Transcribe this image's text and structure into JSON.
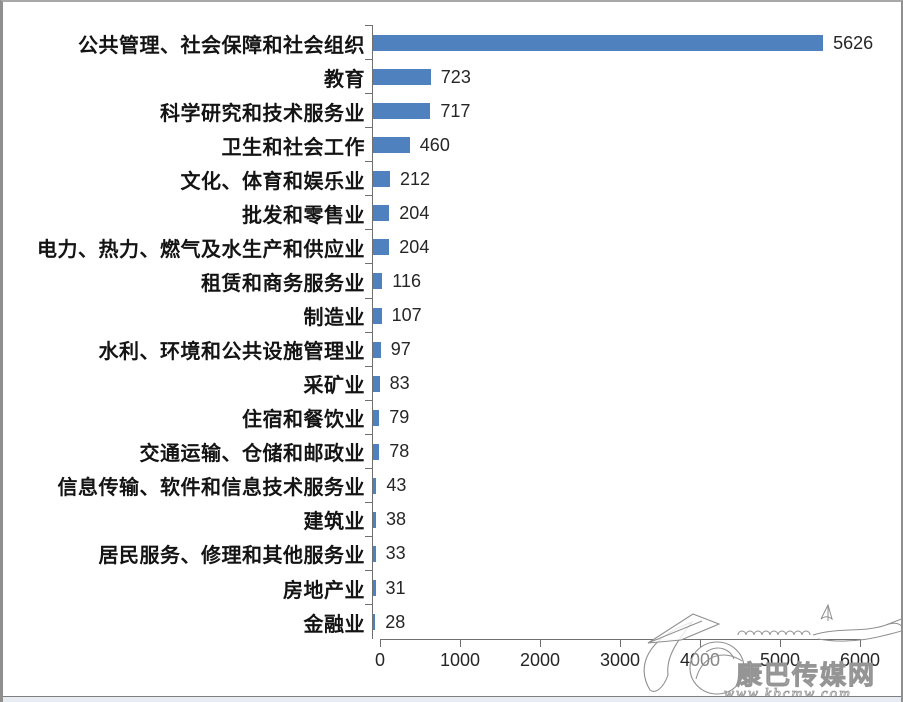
{
  "chart_data": {
    "type": "bar",
    "orientation": "horizontal",
    "title": "",
    "categories": [
      "公共管理、社会保障和社会组织",
      "教育",
      "科学研究和技术服务业",
      "卫生和社会工作",
      "文化、体育和娱乐业",
      "批发和零售业",
      "电力、热力、燃气及水生产和供应业",
      "租赁和商务服务业",
      "制造业",
      "水利、环境和公共设施管理业",
      "采矿业",
      "住宿和餐饮业",
      "交通运输、仓储和邮政业",
      "信息传输、软件和信息技术服务业",
      "建筑业",
      "居民服务、修理和其他服务业",
      "房地产业",
      "金融业"
    ],
    "values": [
      5626,
      723,
      717,
      460,
      212,
      204,
      204,
      116,
      107,
      97,
      83,
      79,
      78,
      43,
      38,
      33,
      31,
      28
    ],
    "value_labels": [
      "5626",
      "723",
      "717",
      "460",
      "212",
      "204",
      "204",
      "116",
      "107",
      "97",
      "83",
      "79",
      "78",
      "43",
      "38",
      "33",
      "31",
      "28"
    ],
    "xlabel": "",
    "ylabel": "",
    "xlim": [
      0,
      6000
    ],
    "x_ticks": [
      "0",
      "1000",
      "2000",
      "3000",
      "4000",
      "5000",
      "6000"
    ],
    "bar_color": "#4e81bd",
    "grid": false,
    "legend": false
  },
  "watermark": {
    "site_name": "康巴传媒网",
    "site_url": "www.kbcmw.com"
  }
}
